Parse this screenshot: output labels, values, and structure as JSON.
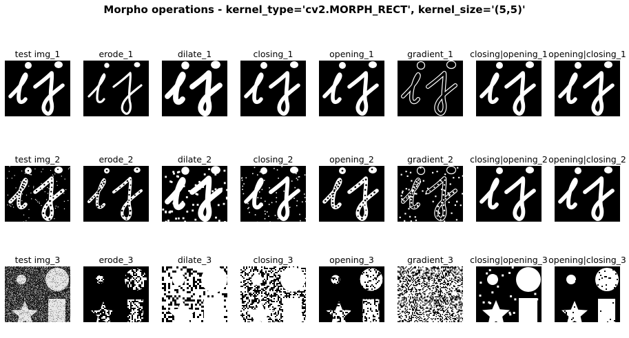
{
  "figure": {
    "title": "Morpho operations - kernel_type='cv2.MORPH_RECT', kernel_size='(5,5)'"
  },
  "rows": [
    {
      "index": 1,
      "content": "ij",
      "panels": [
        {
          "title": "test img_1",
          "op": "original"
        },
        {
          "title": "erode_1",
          "op": "erode"
        },
        {
          "title": "dilate_1",
          "op": "dilate"
        },
        {
          "title": "closing_1",
          "op": "closing"
        },
        {
          "title": "opening_1",
          "op": "opening"
        },
        {
          "title": "gradient_1",
          "op": "gradient"
        },
        {
          "title": "closing|opening_1",
          "op": "closing_opening"
        },
        {
          "title": "opening|closing_1",
          "op": "opening_closing"
        }
      ]
    },
    {
      "index": 2,
      "content": "ij-noisy",
      "panels": [
        {
          "title": "test img_2",
          "op": "original"
        },
        {
          "title": "erode_2",
          "op": "erode"
        },
        {
          "title": "dilate_2",
          "op": "dilate"
        },
        {
          "title": "closing_2",
          "op": "closing"
        },
        {
          "title": "opening_2",
          "op": "opening"
        },
        {
          "title": "gradient_2",
          "op": "gradient"
        },
        {
          "title": "closing|opening_2",
          "op": "closing_opening"
        },
        {
          "title": "opening|closing_2",
          "op": "opening_closing"
        }
      ]
    },
    {
      "index": 3,
      "content": "shapes-noisy",
      "panels": [
        {
          "title": "test img_3",
          "op": "original"
        },
        {
          "title": "erode_3",
          "op": "erode"
        },
        {
          "title": "dilate_3",
          "op": "dilate"
        },
        {
          "title": "closing_3",
          "op": "closing"
        },
        {
          "title": "opening_3",
          "op": "opening"
        },
        {
          "title": "gradient_3",
          "op": "gradient"
        },
        {
          "title": "closing|opening_3",
          "op": "closing_opening"
        },
        {
          "title": "opening|closing_3",
          "op": "opening_closing"
        }
      ]
    }
  ]
}
